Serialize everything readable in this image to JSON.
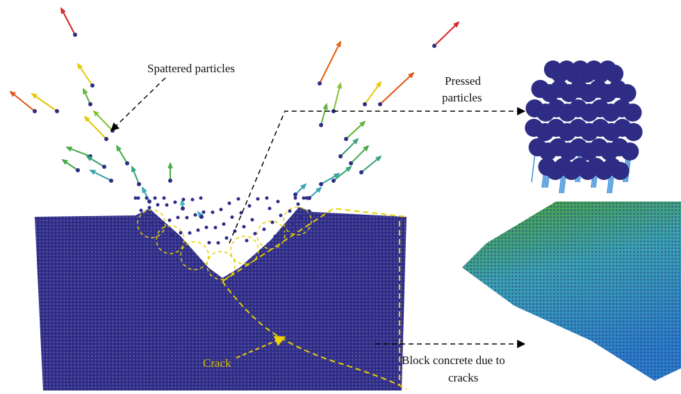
{
  "labels": {
    "spattered": "Spattered particles",
    "pressed": [
      "Pressed",
      "particles"
    ],
    "crack": "Crack",
    "block": [
      "Block concrete due to",
      "cracks"
    ]
  }
}
